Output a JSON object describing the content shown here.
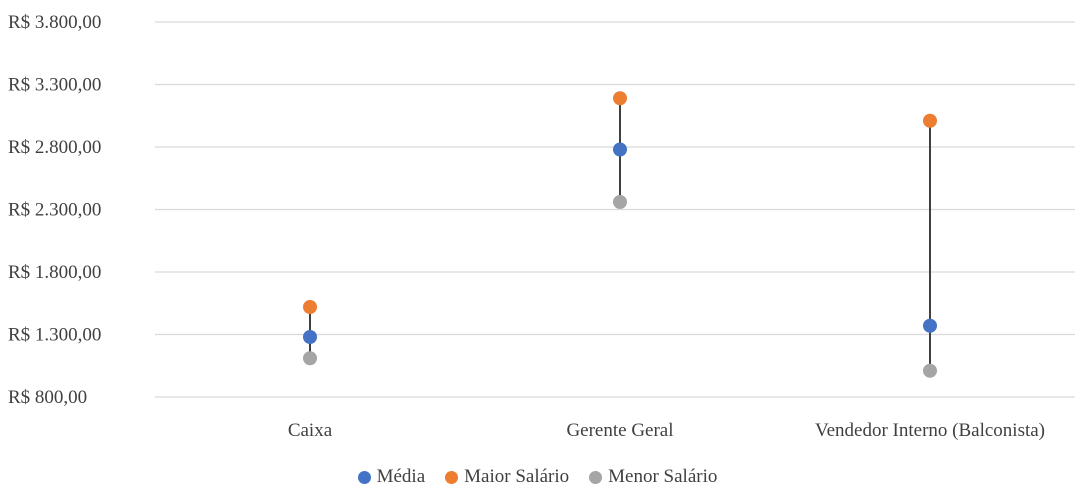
{
  "chart_data": {
    "type": "scatter",
    "title": "",
    "xlabel": "",
    "ylabel": "",
    "ylim": [
      800,
      3800
    ],
    "yticks": [
      3800,
      3300,
      2800,
      2300,
      1800,
      1300,
      800
    ],
    "ytick_labels": [
      "R$ 3.800,00",
      "R$ 3.300,00",
      "R$ 2.800,00",
      "R$ 2.300,00",
      "R$ 1.800,00",
      "R$ 1.300,00",
      "R$ 800,00"
    ],
    "grid": true,
    "legend_position": "bottom",
    "categories": [
      "Caixa",
      "Gerente Geral",
      "Vendedor Interno (Balconista)"
    ],
    "series": [
      {
        "name": "Média",
        "color": "#4472c4",
        "values": [
          1280,
          2780,
          1370
        ]
      },
      {
        "name": "Maior Salário",
        "color": "#ed7d31",
        "values": [
          1520,
          3190,
          3010
        ]
      },
      {
        "name": "Menor Salário",
        "color": "#a5a5a5",
        "values": [
          1110,
          2360,
          1010
        ]
      }
    ]
  }
}
